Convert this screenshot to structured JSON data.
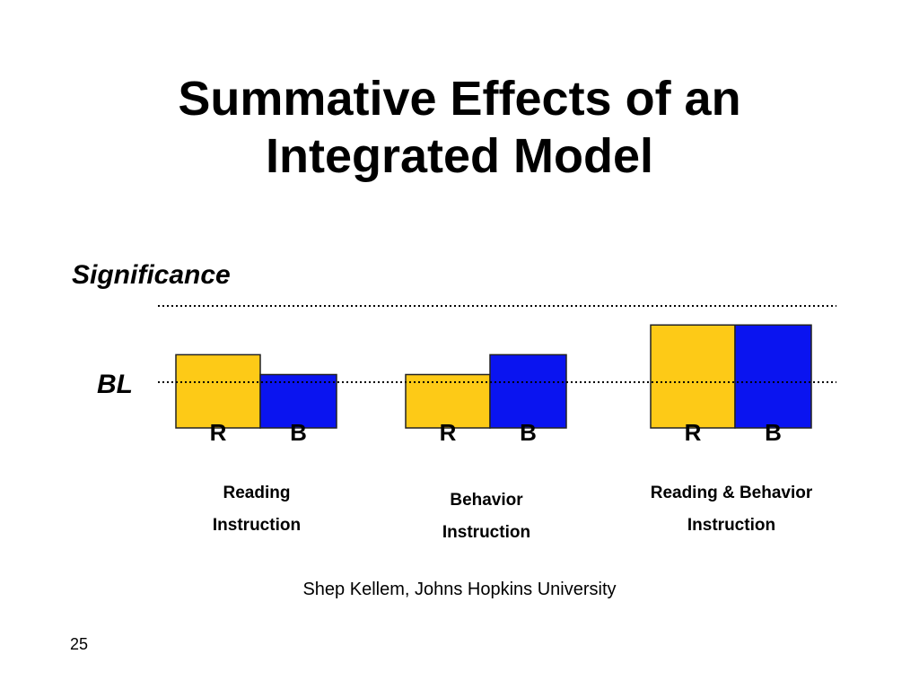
{
  "slide": {
    "title_line1": "Summative Effects of an",
    "title_line2": "Integrated Model",
    "credit": "Shep Kellem, Johns Hopkins University",
    "page_number": "25"
  },
  "chart_data": {
    "type": "bar",
    "title": "",
    "ylabel": "",
    "xlabel": "",
    "y_reference_lines": [
      {
        "label": "Significance",
        "value": 2
      },
      {
        "label": "BL",
        "value": 0
      }
    ],
    "ylim": [
      -1.2,
      3
    ],
    "grid": false,
    "legend": "none",
    "categories": [
      {
        "line1": "Reading",
        "line2": "Instruction"
      },
      {
        "line1": "Behavior",
        "line2": "Instruction"
      },
      {
        "line1": "Reading & Behavior",
        "line2": "Instruction"
      }
    ],
    "series": [
      {
        "bar_label": "R",
        "color": "#FDCA17",
        "values": [
          0.72,
          0.2,
          1.5
        ]
      },
      {
        "bar_label": "B",
        "color": "#0A14F0",
        "values": [
          0.2,
          0.72,
          1.5
        ]
      }
    ],
    "colors": {
      "reference_line": "#000000",
      "bar_border": "#222222"
    }
  }
}
